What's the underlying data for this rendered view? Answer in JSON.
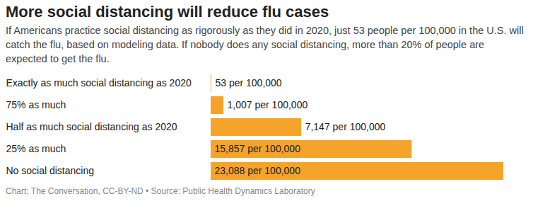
{
  "chart_data": {
    "type": "bar",
    "orientation": "horizontal",
    "title": "More social distancing will reduce flu cases",
    "subtitle": "If Americans practice social distancing as rigorously as they did in 2020, just 53 people per 100,000 in the U.S. will catch the flu, based on modeling data. If nobody does any social distancing, more than 20% of people are expected to get the flu.",
    "caption": "Chart: The Conversation, CC-BY-ND • Source: Public Health Dynamics Laboratory",
    "categories": [
      "Exactly as much social distancing as 2020",
      "75% as much",
      "Half as much social distancing as 2020",
      "25% as much",
      "No social distancing"
    ],
    "values": [
      53,
      1007,
      7147,
      15857,
      23088
    ],
    "value_labels": [
      "53 per 100,000",
      "1,007 per 100,000",
      "7,147 per 100,000",
      "15,857 per 100,000",
      "23,088 per 100,000"
    ],
    "data_labels": true,
    "color": "#f5a32a",
    "xlim": [
      0,
      23088
    ],
    "tick_labels": "y",
    "grid": false
  }
}
